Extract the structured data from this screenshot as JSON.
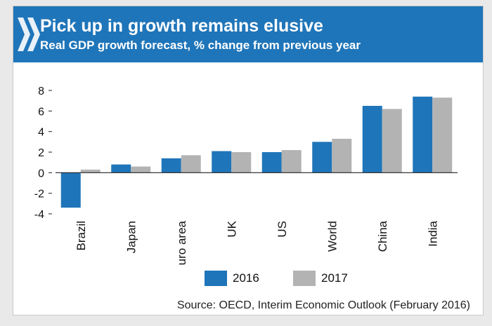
{
  "header": {
    "title": "Pick up in growth remains elusive",
    "subtitle": "Real GDP growth forecast, % change from previous year"
  },
  "colors": {
    "header_bg": "#1f75b9",
    "series_2016": "#1f75b9",
    "series_2017": "#b3b3b3"
  },
  "chart_data": {
    "type": "bar",
    "categories": [
      "Brazil",
      "Japan",
      "Euro area",
      "UK",
      "US",
      "World",
      "China",
      "India"
    ],
    "series": [
      {
        "name": "2016",
        "values": [
          -3.4,
          0.8,
          1.4,
          2.1,
          2.0,
          3.0,
          6.5,
          7.4
        ]
      },
      {
        "name": "2017",
        "values": [
          0.3,
          0.6,
          1.7,
          2.0,
          2.2,
          3.3,
          6.2,
          7.3
        ]
      }
    ],
    "yticks": [
      8,
      6,
      4,
      2,
      0,
      -2,
      -4
    ],
    "ylim": [
      -4,
      8
    ],
    "grid": false,
    "legend_position": "bottom"
  },
  "legend": {
    "items": [
      "2016",
      "2017"
    ]
  },
  "source": "Source: OECD, Interim Economic Outlook (February 2016)"
}
